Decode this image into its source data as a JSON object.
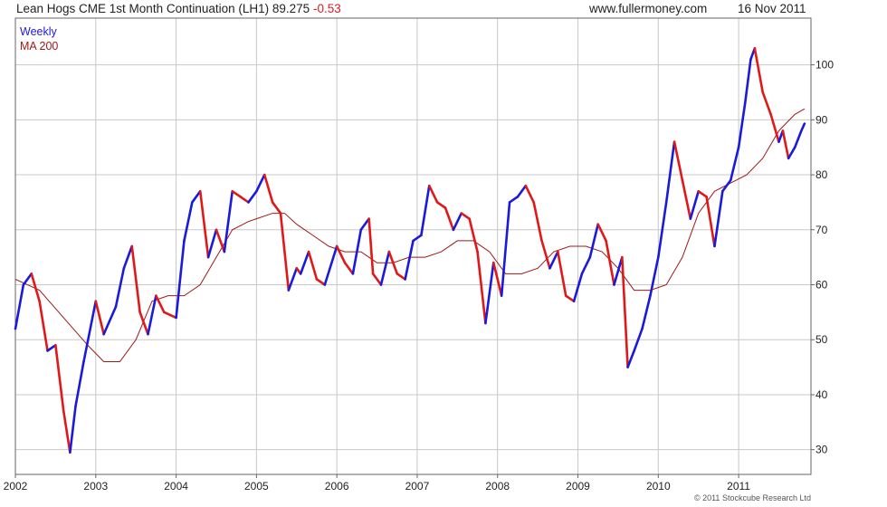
{
  "header": {
    "title": "Lean Hogs CME 1st Month Continuation (LH1) 89.275",
    "change": "-0.53",
    "site": "www.fullermoney.com",
    "date": "16 Nov 2011"
  },
  "copyright": "© 2011 Stockcube Research Ltd",
  "colors": {
    "up": "#1a1adc",
    "down": "#e01818",
    "ma": "#a01818",
    "grid": "#c8c8c8",
    "frame": "#666666"
  },
  "chart_data": {
    "type": "line",
    "x_tick_labels": [
      "2002",
      "2003",
      "2004",
      "2005",
      "2006",
      "2007",
      "2008",
      "2009",
      "2010",
      "2011"
    ],
    "y_ticks": [
      30,
      40,
      50,
      60,
      70,
      80,
      90,
      100
    ],
    "xlim": [
      2002.0,
      2011.9
    ],
    "ylim": [
      25.5,
      108.5
    ],
    "grid": true,
    "legend_position": "top-left",
    "series": [
      {
        "name": "Weekly",
        "color": "#1a1adc",
        "x": [
          2002.0,
          2002.1,
          2002.2,
          2002.3,
          2002.4,
          2002.5,
          2002.6,
          2002.68,
          2002.75,
          2002.85,
          2003.0,
          2003.1,
          2003.25,
          2003.35,
          2003.45,
          2003.55,
          2003.65,
          2003.75,
          2003.85,
          2004.0,
          2004.1,
          2004.2,
          2004.3,
          2004.4,
          2004.5,
          2004.6,
          2004.7,
          2004.8,
          2004.9,
          2005.0,
          2005.1,
          2005.2,
          2005.3,
          2005.4,
          2005.5,
          2005.55,
          2005.65,
          2005.75,
          2005.85,
          2006.0,
          2006.1,
          2006.2,
          2006.3,
          2006.4,
          2006.45,
          2006.55,
          2006.65,
          2006.75,
          2006.85,
          2006.95,
          2007.05,
          2007.15,
          2007.25,
          2007.35,
          2007.45,
          2007.55,
          2007.65,
          2007.75,
          2007.85,
          2007.95,
          2008.05,
          2008.15,
          2008.25,
          2008.35,
          2008.45,
          2008.55,
          2008.65,
          2008.75,
          2008.85,
          2008.95,
          2009.05,
          2009.15,
          2009.25,
          2009.35,
          2009.45,
          2009.55,
          2009.62,
          2009.7,
          2009.8,
          2009.9,
          2010.0,
          2010.1,
          2010.2,
          2010.3,
          2010.4,
          2010.5,
          2010.6,
          2010.7,
          2010.8,
          2010.9,
          2011.0,
          2011.08,
          2011.15,
          2011.2,
          2011.3,
          2011.4,
          2011.5,
          2011.55,
          2011.62,
          2011.7,
          2011.78,
          2011.82
        ],
        "values": [
          52,
          60,
          62,
          57,
          48,
          49,
          37,
          29.5,
          38,
          46,
          57,
          51,
          56,
          63,
          67,
          55,
          51,
          58,
          55,
          54,
          68,
          75,
          77,
          65,
          70,
          66,
          77,
          76,
          75,
          77,
          80,
          75,
          73,
          59,
          63,
          62,
          66,
          61,
          60,
          67,
          64,
          62,
          70,
          72,
          62,
          60,
          66,
          62,
          61,
          68,
          69,
          78,
          75,
          74,
          70,
          73,
          72,
          66,
          53,
          64,
          58,
          75,
          76,
          78,
          75,
          68,
          63,
          66,
          58,
          57,
          62,
          65,
          71,
          68,
          60,
          65,
          45,
          48,
          52,
          58,
          65,
          75,
          86,
          79,
          72,
          77,
          76,
          67,
          77,
          79,
          85,
          93,
          101,
          103,
          95,
          91,
          86,
          88,
          83,
          85,
          88,
          89.3
        ]
      },
      {
        "name": "MA 200",
        "color": "#a01818",
        "x": [
          2002.0,
          2002.3,
          2002.6,
          2002.9,
          2003.1,
          2003.3,
          2003.5,
          2003.7,
          2003.9,
          2004.1,
          2004.3,
          2004.5,
          2004.7,
          2004.9,
          2005.0,
          2005.2,
          2005.35,
          2005.5,
          2005.7,
          2005.9,
          2006.1,
          2006.3,
          2006.5,
          2006.7,
          2006.9,
          2007.1,
          2007.3,
          2007.5,
          2007.7,
          2007.9,
          2008.1,
          2008.3,
          2008.5,
          2008.7,
          2008.9,
          2009.1,
          2009.3,
          2009.5,
          2009.7,
          2009.9,
          2010.1,
          2010.3,
          2010.5,
          2010.7,
          2010.9,
          2011.1,
          2011.3,
          2011.5,
          2011.7,
          2011.82
        ],
        "values": [
          61,
          59,
          54,
          49,
          46,
          46,
          50,
          57,
          58,
          58,
          60,
          65,
          70,
          71.5,
          72,
          73,
          73,
          71,
          69,
          67,
          66,
          66,
          64,
          64,
          65,
          65,
          66,
          68,
          68,
          66,
          62,
          62,
          63,
          66,
          67,
          67,
          66,
          63,
          59,
          59,
          60,
          65,
          73,
          77,
          78.5,
          80,
          83,
          88,
          91,
          92
        ]
      }
    ]
  }
}
